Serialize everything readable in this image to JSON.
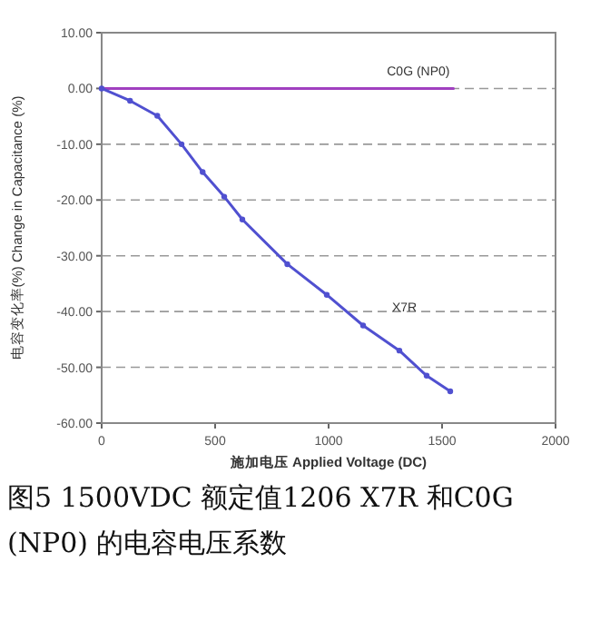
{
  "chart_data": {
    "type": "line",
    "xlabel": "施加电压 Applied Voltage (DC)",
    "ylabel": "电容变化率(%) Change in Capacitance (%)",
    "annotations": [
      "图5 1500VDC 额定值1206 X7R 和C0G (NP0) 的电容电压系数"
    ],
    "xlim": [
      0,
      2000
    ],
    "xticks": [
      0,
      500,
      1000,
      1500,
      2000
    ],
    "ylim": [
      -60,
      10
    ],
    "yticks": [
      {
        "value": 10,
        "label": "10.00"
      },
      {
        "value": 0,
        "label": "0.00"
      },
      {
        "value": -10,
        "label": "-10.00"
      },
      {
        "value": -20,
        "label": "-20.00"
      },
      {
        "value": -30,
        "label": "-30.00"
      },
      {
        "value": -40,
        "label": "-40.00"
      },
      {
        "value": -50,
        "label": "-50.00"
      },
      {
        "value": -60,
        "label": "-60.00"
      }
    ],
    "grid": "y",
    "series": [
      {
        "name": "C0G (NP0)",
        "color": "#a040c0",
        "marker": "none",
        "x": [
          0,
          1550
        ],
        "values": [
          0,
          0
        ]
      },
      {
        "name": "X7R",
        "color": "#5050d0",
        "marker": "circle",
        "x": [
          0,
          125,
          245,
          352,
          445,
          540,
          620,
          818,
          992,
          1152,
          1312,
          1432,
          1536
        ],
        "values": [
          0,
          -2.2,
          -4.9,
          -10,
          -15,
          -19.4,
          -23.5,
          -31.5,
          -37,
          -42.5,
          -47,
          -51.5,
          -54.3
        ]
      }
    ]
  }
}
